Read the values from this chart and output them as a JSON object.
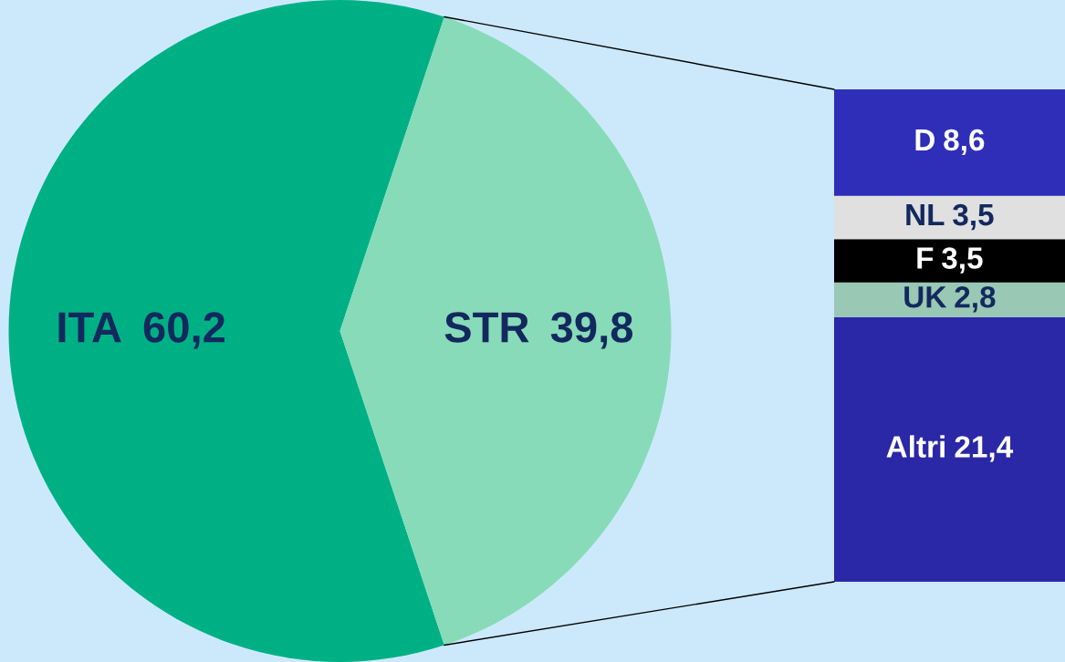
{
  "chart_data": [
    {
      "type": "pie",
      "categories": [
        "ITA",
        "STR"
      ],
      "values": [
        60.2,
        39.8
      ],
      "colors": [
        "#00b085",
        "#88dbb9"
      ],
      "value_labels": [
        "60,2",
        "39,8"
      ]
    },
    {
      "type": "bar",
      "stacked": true,
      "categories": [
        null
      ],
      "series": [
        {
          "name": "Altri",
          "color": "#2a28a6",
          "values": [
            21.4
          ],
          "value_labels": [
            "21,4"
          ]
        },
        {
          "name": "UK",
          "color": "#99c8b4",
          "values": [
            2.8
          ],
          "value_labels": [
            "2,8"
          ]
        },
        {
          "name": "F",
          "color": "#000000",
          "values": [
            3.5
          ],
          "value_labels": [
            "3,5"
          ]
        },
        {
          "name": "NL",
          "color": "#e0e0e0",
          "values": [
            3.5
          ],
          "value_labels": [
            "3,5"
          ]
        },
        {
          "name": "D",
          "color": "#2e2eb8",
          "values": [
            8.6
          ],
          "value_labels": [
            "8,6"
          ]
        }
      ]
    }
  ]
}
